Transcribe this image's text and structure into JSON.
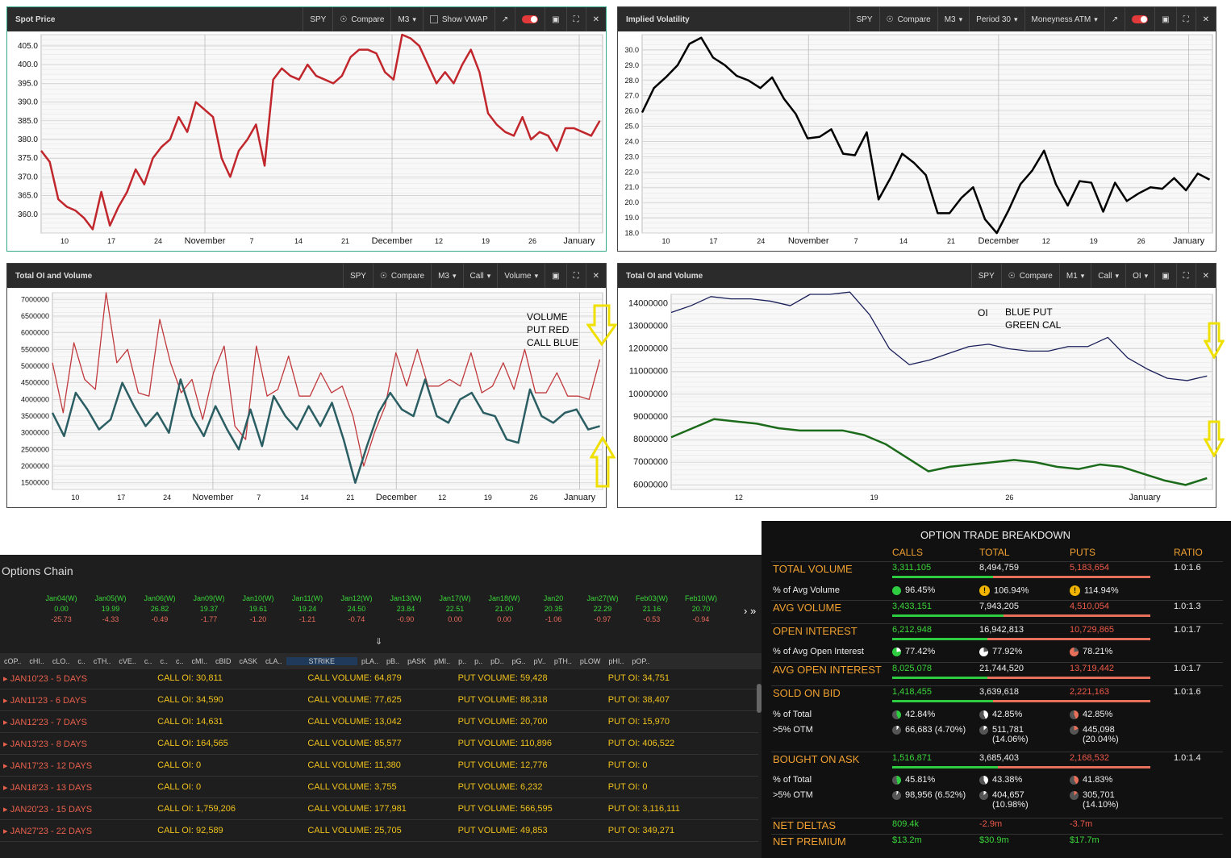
{
  "panels": {
    "spot": {
      "title": "Spot Price",
      "ticker": "SPY",
      "compare": "Compare",
      "m": "M3",
      "vwap": "Show VWAP"
    },
    "iv": {
      "title": "Implied Volatility",
      "ticker": "SPY",
      "compare": "Compare",
      "m": "M3",
      "period": "Period  30",
      "moneyness": "Moneyness  ATM"
    },
    "oi1": {
      "title": "Total OI and Volume",
      "ticker": "SPY",
      "compare": "Compare",
      "m": "M3",
      "type": "Call",
      "metric": "Volume"
    },
    "oi2": {
      "title": "Total OI and Volume",
      "ticker": "SPY",
      "compare": "Compare",
      "m": "M1",
      "type": "Call",
      "metric": "OI"
    }
  },
  "annotations": {
    "volume": [
      "VOLUME",
      "PUT RED",
      "CALL BLUE"
    ],
    "oi": "OI",
    "oi_legend": [
      "BLUE PUT",
      "GREEN CAL"
    ]
  },
  "chart_data": [
    {
      "type": "line",
      "title": "Spot Price",
      "x_ticks": [
        "10",
        "17",
        "24",
        "November",
        "7",
        "14",
        "21",
        "December",
        "12",
        "19",
        "26",
        "January"
      ],
      "y_ticks": [
        "360.0",
        "365.0",
        "370.0",
        "375.0",
        "380.0",
        "385.0",
        "390.0",
        "395.0",
        "400.0",
        "405.0"
      ],
      "ylim": [
        355,
        408
      ],
      "grid": true,
      "series": [
        {
          "color": "#c0262b",
          "values": [
            377,
            374,
            364,
            362,
            361,
            359,
            356,
            366,
            357,
            362,
            366,
            372,
            368,
            375,
            378,
            380,
            386,
            382,
            390,
            388,
            386,
            375,
            370,
            377,
            380,
            384,
            373,
            396,
            399,
            397,
            396,
            400,
            397,
            396,
            395,
            397,
            402,
            404,
            404,
            403,
            398,
            396,
            408,
            407,
            405,
            400,
            395,
            398,
            395,
            400,
            404,
            398,
            387,
            384,
            382,
            381,
            386,
            380,
            382,
            381,
            377,
            383,
            383,
            382,
            381,
            385
          ]
        }
      ]
    },
    {
      "type": "line",
      "title": "Implied Volatility",
      "x_ticks": [
        "10",
        "17",
        "24",
        "November",
        "7",
        "14",
        "21",
        "December",
        "12",
        "19",
        "26",
        "January"
      ],
      "y_ticks": [
        "18.0",
        "19.0",
        "20.0",
        "21.0",
        "22.0",
        "23.0",
        "24.0",
        "25.0",
        "26.0",
        "27.0",
        "28.0",
        "29.0",
        "30.0"
      ],
      "ylim": [
        18,
        31
      ],
      "grid": true,
      "series": [
        {
          "color": "#000000",
          "values": [
            25.9,
            27.5,
            28.2,
            29.0,
            30.4,
            30.8,
            29.5,
            29.0,
            28.3,
            28.0,
            27.5,
            28.2,
            26.8,
            25.8,
            24.2,
            24.3,
            24.8,
            23.2,
            23.1,
            24.6,
            20.2,
            21.6,
            23.2,
            22.6,
            21.8,
            19.3,
            19.3,
            20.3,
            21.0,
            18.9,
            18.0,
            19.5,
            21.2,
            22.1,
            23.4,
            21.2,
            19.8,
            21.4,
            21.3,
            19.4,
            21.3,
            20.1,
            20.6,
            21.0,
            20.9,
            21.6,
            20.8,
            21.9,
            21.5
          ]
        }
      ]
    },
    {
      "type": "line",
      "title": "Total OI and Volume",
      "x_ticks": [
        "10",
        "17",
        "24",
        "November",
        "7",
        "14",
        "21",
        "December",
        "12",
        "19",
        "26",
        "January"
      ],
      "y_ticks": [
        "1500000",
        "2000000",
        "2500000",
        "3000000",
        "3500000",
        "4000000",
        "4500000",
        "5000000",
        "5500000",
        "6000000",
        "6500000",
        "7000000"
      ],
      "ylim": [
        1300000,
        7200000
      ],
      "grid": true,
      "series": [
        {
          "name": "PUT RED",
          "color": "#c0393d",
          "values": [
            5100000,
            3600000,
            5700000,
            4600000,
            4300000,
            7200000,
            5100000,
            5500000,
            4200000,
            4100000,
            6400000,
            5100000,
            4200000,
            4600000,
            3400000,
            4800000,
            5600000,
            3200000,
            2800000,
            5600000,
            4100000,
            4300000,
            5300000,
            4100000,
            4100000,
            4800000,
            4200000,
            4400000,
            3500000,
            2000000,
            3000000,
            3800000,
            5400000,
            4400000,
            5500000,
            4400000,
            4400000,
            4600000,
            4400000,
            5400000,
            4200000,
            4400000,
            5100000,
            4300000,
            5500000,
            4200000,
            4200000,
            4800000,
            4100000,
            4100000,
            4000000,
            5200000
          ]
        },
        {
          "name": "CALL BLUE",
          "color": "#2b5e63",
          "values": [
            3600000,
            2900000,
            4200000,
            3700000,
            3100000,
            3400000,
            4500000,
            3800000,
            3200000,
            3600000,
            3000000,
            4600000,
            3500000,
            2900000,
            3800000,
            3100000,
            2500000,
            3700000,
            2600000,
            4100000,
            3500000,
            3100000,
            3800000,
            3200000,
            3900000,
            2800000,
            1500000,
            2600000,
            3600000,
            4200000,
            3700000,
            3500000,
            4600000,
            3500000,
            3300000,
            4000000,
            4200000,
            3600000,
            3500000,
            2800000,
            2700000,
            4300000,
            3500000,
            3300000,
            3600000,
            3700000,
            3100000,
            3200000
          ]
        }
      ]
    },
    {
      "type": "line",
      "title": "Total OI and Volume",
      "x_ticks": [
        "12",
        "19",
        "26",
        "January"
      ],
      "y_ticks": [
        "6000000",
        "7000000",
        "8000000",
        "9000000",
        "10000000",
        "11000000",
        "12000000",
        "13000000",
        "14000000"
      ],
      "ylim": [
        5800000,
        14400000
      ],
      "grid": true,
      "series": [
        {
          "name": "BLUE PUT",
          "color": "#1a1f5a",
          "values": [
            13600000,
            13900000,
            14300000,
            14200000,
            14200000,
            14100000,
            13900000,
            14400000,
            14400000,
            14500000,
            13500000,
            12000000,
            11300000,
            11500000,
            11800000,
            12100000,
            12200000,
            12000000,
            11900000,
            11900000,
            12100000,
            12100000,
            12500000,
            11600000,
            11100000,
            10700000,
            10600000,
            10800000
          ]
        },
        {
          "name": "GREEN CAL",
          "color": "#1b6b1b",
          "values": [
            8100000,
            8500000,
            8900000,
            8800000,
            8700000,
            8500000,
            8400000,
            8400000,
            8400000,
            8200000,
            7800000,
            7200000,
            6600000,
            6800000,
            6900000,
            7000000,
            7100000,
            7000000,
            6800000,
            6700000,
            6900000,
            6800000,
            6500000,
            6200000,
            6000000,
            6300000
          ]
        }
      ]
    }
  ],
  "chain": {
    "title": "Options Chain",
    "expirations": [
      [
        "Jan04(W)",
        "0.00",
        "-25.73"
      ],
      [
        "Jan05(W)",
        "19.99",
        "-4.33"
      ],
      [
        "Jan06(W)",
        "26.82",
        "-0.49"
      ],
      [
        "Jan09(W)",
        "19.37",
        "-1.77"
      ],
      [
        "Jan10(W)",
        "19.61",
        "-1.20"
      ],
      [
        "Jan11(W)",
        "19.24",
        "-1.21"
      ],
      [
        "Jan12(W)",
        "24.50",
        "-0.74"
      ],
      [
        "Jan13(W)",
        "23.84",
        "-0.90"
      ],
      [
        "Jan17(W)",
        "22.51",
        "0.00"
      ],
      [
        "Jan18(W)",
        "21.00",
        "0.00"
      ],
      [
        "Jan20",
        "20.35",
        "-1.06"
      ],
      [
        "Jan27(W)",
        "22.29",
        "-0.97"
      ],
      [
        "Feb03(W)",
        "21.16",
        "-0.53"
      ],
      [
        "Feb10(W)",
        "20.70",
        "-0.94"
      ]
    ],
    "columns": [
      "cOP..",
      "cHI..",
      "cLO..",
      "c..",
      "cTH..",
      "cVE..",
      "c..",
      "c..",
      "c..",
      "cMI..",
      "cBID",
      "cASK",
      "cLA..",
      "STRIKE",
      "pLA..",
      "pB..",
      "pASK",
      "pMI..",
      "p..",
      "p..",
      "pD..",
      "pG..",
      "pV..",
      "pTH..",
      "pLOW",
      "pHI..",
      "pOP.."
    ],
    "rows": [
      {
        "exp": "JAN10'23 - 5 DAYS",
        "call_oi": "CALL OI: 30,811",
        "call_vol": "CALL VOLUME: 64,879",
        "put_vol": "PUT VOLUME: 59,428",
        "put_oi": "PUT OI: 34,751"
      },
      {
        "exp": "JAN11'23 - 6 DAYS",
        "call_oi": "CALL OI: 34,590",
        "call_vol": "CALL VOLUME: 77,625",
        "put_vol": "PUT VOLUME: 88,318",
        "put_oi": "PUT OI: 38,407"
      },
      {
        "exp": "JAN12'23 - 7 DAYS",
        "call_oi": "CALL OI: 14,631",
        "call_vol": "CALL VOLUME: 13,042",
        "put_vol": "PUT VOLUME: 20,700",
        "put_oi": "PUT OI: 15,970"
      },
      {
        "exp": "JAN13'23 - 8 DAYS",
        "call_oi": "CALL OI: 164,565",
        "call_vol": "CALL VOLUME: 85,577",
        "put_vol": "PUT VOLUME: 110,896",
        "put_oi": "PUT OI: 406,522"
      },
      {
        "exp": "JAN17'23 - 12 DAYS",
        "call_oi": "CALL OI: 0",
        "call_vol": "CALL VOLUME: 11,380",
        "put_vol": "PUT VOLUME: 12,776",
        "put_oi": "PUT OI: 0"
      },
      {
        "exp": "JAN18'23 - 13 DAYS",
        "call_oi": "CALL OI: 0",
        "call_vol": "CALL VOLUME: 3,755",
        "put_vol": "PUT VOLUME: 6,232",
        "put_oi": "PUT OI: 0"
      },
      {
        "exp": "JAN20'23 - 15 DAYS",
        "call_oi": "CALL OI: 1,759,206",
        "call_vol": "CALL VOLUME: 177,981",
        "put_vol": "PUT VOLUME: 566,595",
        "put_oi": "PUT OI: 3,116,111"
      },
      {
        "exp": "JAN27'23 - 22 DAYS",
        "call_oi": "CALL OI: 92,589",
        "call_vol": "CALL VOLUME: 25,705",
        "put_vol": "PUT VOLUME: 49,853",
        "put_oi": "PUT OI: 349,271"
      }
    ]
  },
  "breakdown": {
    "title": "OPTION TRADE BREAKDOWN",
    "cols": [
      "CALLS",
      "TOTAL",
      "PUTS",
      "RATIO"
    ],
    "total_volume": {
      "label": "TOTAL VOLUME",
      "calls": "3,311,105",
      "total": "8,494,759",
      "puts": "5,183,654",
      "ratio": "1.0:1.6",
      "call_frac": 0.39
    },
    "pct_avg_vol": {
      "label": "% of Avg Volume",
      "calls": "96.45%",
      "total": "106.94%",
      "puts": "114.94%"
    },
    "avg_volume": {
      "label": "AVG VOLUME",
      "calls": "3,433,151",
      "total": "7,943,205",
      "puts": "4,510,054",
      "ratio": "1.0:1.3",
      "call_frac": 0.43
    },
    "open_interest": {
      "label": "OPEN INTEREST",
      "calls": "6,212,948",
      "total": "16,942,813",
      "puts": "10,729,865",
      "ratio": "1.0:1.7",
      "call_frac": 0.37
    },
    "pct_avg_oi": {
      "label": "% of Avg Open Interest",
      "calls": "77.42%",
      "total": "77.92%",
      "puts": "78.21%"
    },
    "avg_oi": {
      "label": "AVG OPEN INTEREST",
      "calls": "8,025,078",
      "total": "21,744,520",
      "puts": "13,719,442",
      "ratio": "1.0:1.7",
      "call_frac": 0.37
    },
    "sold_bid": {
      "label": "SOLD ON BID",
      "calls": "1,418,455",
      "total": "3,639,618",
      "puts": "2,221,163",
      "ratio": "1.0:1.6",
      "call_frac": 0.39
    },
    "sold_pct": {
      "label": "% of Total",
      "calls": "42.84%",
      "total": "42.85%",
      "puts": "42.85%"
    },
    "sold_otm": {
      "label": ">5% OTM",
      "calls": "66,683 (4.70%)",
      "total": "511,781",
      "total2": "(14.06%)",
      "puts": "445,098",
      "puts2": "(20.04%)"
    },
    "bought_ask": {
      "label": "BOUGHT ON ASK",
      "calls": "1,516,871",
      "total": "3,685,403",
      "puts": "2,168,532",
      "ratio": "1.0:1.4",
      "call_frac": 0.41
    },
    "bought_pct": {
      "label": "% of Total",
      "calls": "45.81%",
      "total": "43.38%",
      "puts": "41.83%"
    },
    "bought_otm": {
      "label": ">5% OTM",
      "calls": "98,956 (6.52%)",
      "total": "404,657",
      "total2": "(10.98%)",
      "puts": "305,701",
      "puts2": "(14.10%)"
    },
    "net_deltas": {
      "label": "NET DELTAS",
      "calls": "809.4k",
      "total": "-2.9m",
      "puts": "-3.7m"
    },
    "net_premium": {
      "label": "NET PREMIUM",
      "calls": "$13.2m",
      "total": "$30.9m",
      "puts": "$17.7m"
    }
  }
}
